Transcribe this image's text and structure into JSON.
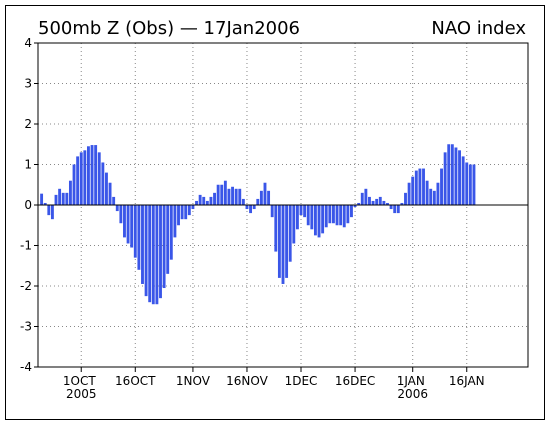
{
  "chart_data": {
    "type": "bar",
    "title": "500mb Z (Obs) — 17Jan2006",
    "subtitle": "NAO index",
    "color": "#3a56e8",
    "grid": true,
    "x": [
      "2005-09-20",
      "2005-09-21",
      "2005-09-22",
      "2005-09-23",
      "2005-09-24",
      "2005-09-25",
      "2005-09-26",
      "2005-09-27",
      "2005-09-28",
      "2005-09-29",
      "2005-09-30",
      "2005-10-01",
      "2005-10-02",
      "2005-10-03",
      "2005-10-04",
      "2005-10-05",
      "2005-10-06",
      "2005-10-07",
      "2005-10-08",
      "2005-10-09",
      "2005-10-10",
      "2005-10-11",
      "2005-10-12",
      "2005-10-13",
      "2005-10-14",
      "2005-10-15",
      "2005-10-16",
      "2005-10-17",
      "2005-10-18",
      "2005-10-19",
      "2005-10-20",
      "2005-10-21",
      "2005-10-22",
      "2005-10-23",
      "2005-10-24",
      "2005-10-25",
      "2005-10-26",
      "2005-10-27",
      "2005-10-28",
      "2005-10-29",
      "2005-10-30",
      "2005-10-31",
      "2005-11-01",
      "2005-11-02",
      "2005-11-03",
      "2005-11-04",
      "2005-11-05",
      "2005-11-06",
      "2005-11-07",
      "2005-11-08",
      "2005-11-09",
      "2005-11-10",
      "2005-11-11",
      "2005-11-12",
      "2005-11-13",
      "2005-11-14",
      "2005-11-15",
      "2005-11-16",
      "2005-11-17",
      "2005-11-18",
      "2005-11-19",
      "2005-11-20",
      "2005-11-21",
      "2005-11-22",
      "2005-11-23",
      "2005-11-24",
      "2005-11-25",
      "2005-11-26",
      "2005-11-27",
      "2005-11-28",
      "2005-11-29",
      "2005-11-30",
      "2005-12-01",
      "2005-12-02",
      "2005-12-03",
      "2005-12-04",
      "2005-12-05",
      "2005-12-06",
      "2005-12-07",
      "2005-12-08",
      "2005-12-09",
      "2005-12-10",
      "2005-12-11",
      "2005-12-12",
      "2005-12-13",
      "2005-12-14",
      "2005-12-15",
      "2005-12-16",
      "2005-12-17",
      "2005-12-18",
      "2005-12-19",
      "2005-12-20",
      "2005-12-21",
      "2005-12-22",
      "2005-12-23",
      "2005-12-24",
      "2005-12-25",
      "2005-12-26",
      "2005-12-27",
      "2005-12-28",
      "2005-12-29",
      "2005-12-30",
      "2005-12-31",
      "2006-01-01",
      "2006-01-02",
      "2006-01-03",
      "2006-01-04",
      "2006-01-05",
      "2006-01-06",
      "2006-01-07",
      "2006-01-08",
      "2006-01-09",
      "2006-01-10",
      "2006-01-11",
      "2006-01-12",
      "2006-01-13",
      "2006-01-14",
      "2006-01-15",
      "2006-01-16",
      "2006-01-17",
      "2006-01-18"
    ],
    "values": [
      0.28,
      0.05,
      -0.25,
      -0.35,
      0.25,
      0.4,
      0.3,
      0.3,
      0.6,
      1.0,
      1.2,
      1.3,
      1.35,
      1.45,
      1.48,
      1.48,
      1.3,
      1.05,
      0.8,
      0.55,
      0.2,
      -0.15,
      -0.45,
      -0.8,
      -0.95,
      -1.05,
      -1.3,
      -1.6,
      -1.95,
      -2.25,
      -2.4,
      -2.45,
      -2.45,
      -2.3,
      -2.05,
      -1.7,
      -1.35,
      -0.8,
      -0.5,
      -0.35,
      -0.35,
      -0.25,
      -0.1,
      0.1,
      0.25,
      0.2,
      0.1,
      0.2,
      0.3,
      0.5,
      0.5,
      0.6,
      0.4,
      0.45,
      0.4,
      0.4,
      0.15,
      -0.1,
      -0.2,
      -0.1,
      0.15,
      0.35,
      0.55,
      0.35,
      -0.3,
      -1.15,
      -1.8,
      -1.95,
      -1.8,
      -1.4,
      -0.95,
      -0.6,
      -0.25,
      -0.3,
      -0.5,
      -0.6,
      -0.75,
      -0.8,
      -0.7,
      -0.55,
      -0.45,
      -0.45,
      -0.5,
      -0.5,
      -0.55,
      -0.45,
      -0.3,
      -0.05,
      0.05,
      0.3,
      0.4,
      0.2,
      0.1,
      0.15,
      0.2,
      0.1,
      0.05,
      -0.1,
      -0.2,
      -0.2,
      0.05,
      0.3,
      0.55,
      0.7,
      0.85,
      0.9,
      0.9,
      0.6,
      0.4,
      0.35,
      0.55,
      0.9,
      1.3,
      1.5,
      1.5,
      1.42,
      1.35,
      1.2,
      1.05,
      1.0,
      1.0
    ],
    "xlim": [
      "2005-09-19",
      "2006-02-02"
    ],
    "xticks": [
      {
        "value": "2005-10-01",
        "label": "1OCT 2005"
      },
      {
        "value": "2005-10-16",
        "label": "16OCT"
      },
      {
        "value": "2005-11-01",
        "label": "1NOV"
      },
      {
        "value": "2005-11-16",
        "label": "16NOV"
      },
      {
        "value": "2005-12-01",
        "label": "1DEC"
      },
      {
        "value": "2005-12-16",
        "label": "16DEC"
      },
      {
        "value": "2006-01-01",
        "label": "1JAN 2006"
      },
      {
        "value": "2006-01-16",
        "label": "16JAN"
      }
    ],
    "ylim": [
      -4,
      4
    ],
    "yticks": [
      -4,
      -3,
      -2,
      -1,
      0,
      1,
      2,
      3,
      4
    ]
  }
}
